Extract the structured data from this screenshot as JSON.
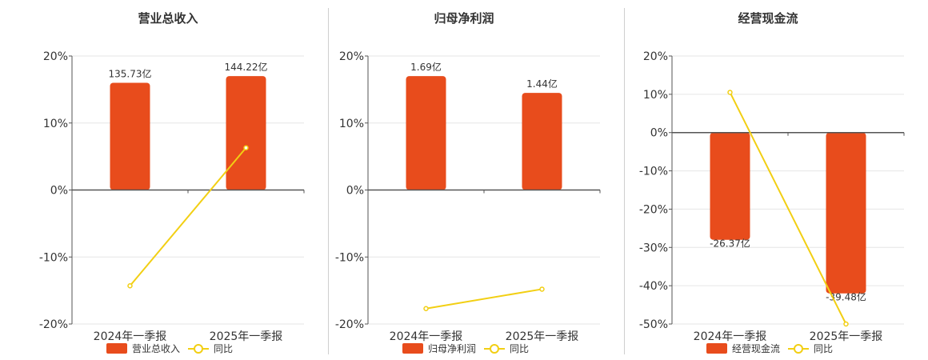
{
  "colors": {
    "bar": "#e84c1c",
    "line": "#f2cf13",
    "axis": "#555555",
    "grid": "#e6e6e6",
    "text": "#333333"
  },
  "chart_data": [
    {
      "type": "bar",
      "title": "营业总收入",
      "categories": [
        "2024年一季报",
        "2025年一季报"
      ],
      "ylim": [
        -20,
        20
      ],
      "yticks": [
        20,
        10,
        0,
        -10,
        -20
      ],
      "tick_suffix": "%",
      "grid": true,
      "legend_position": "bottom",
      "series": [
        {
          "name": "营业总收入",
          "kind": "bar",
          "bar_percent": [
            16,
            17
          ],
          "labels": [
            "135.73亿",
            "144.22亿"
          ]
        },
        {
          "name": "同比",
          "kind": "line",
          "values": [
            -14.3,
            6.3
          ]
        }
      ]
    },
    {
      "type": "bar",
      "title": "归母净利润",
      "categories": [
        "2024年一季报",
        "2025年一季报"
      ],
      "ylim": [
        -20,
        20
      ],
      "yticks": [
        20,
        10,
        0,
        -10,
        -20
      ],
      "tick_suffix": "%",
      "grid": true,
      "legend_position": "bottom",
      "series": [
        {
          "name": "归母净利润",
          "kind": "bar",
          "bar_percent": [
            17,
            14.5
          ],
          "labels": [
            "1.69亿",
            "1.44亿"
          ]
        },
        {
          "name": "同比",
          "kind": "line",
          "values": [
            -17.7,
            -14.8
          ]
        }
      ]
    },
    {
      "type": "bar",
      "title": "经营现金流",
      "categories": [
        "2024年一季报",
        "2025年一季报"
      ],
      "ylim": [
        -50,
        20
      ],
      "yticks": [
        20,
        10,
        0,
        -10,
        -20,
        -30,
        -40,
        -50
      ],
      "tick_suffix": "%",
      "grid": true,
      "legend_position": "bottom",
      "series": [
        {
          "name": "经营现金流",
          "kind": "bar",
          "bar_percent": [
            -28,
            -42
          ],
          "labels": [
            "-26.37亿",
            "-39.48亿"
          ]
        },
        {
          "name": "同比",
          "kind": "line",
          "values": [
            10.5,
            -50
          ]
        }
      ]
    }
  ]
}
